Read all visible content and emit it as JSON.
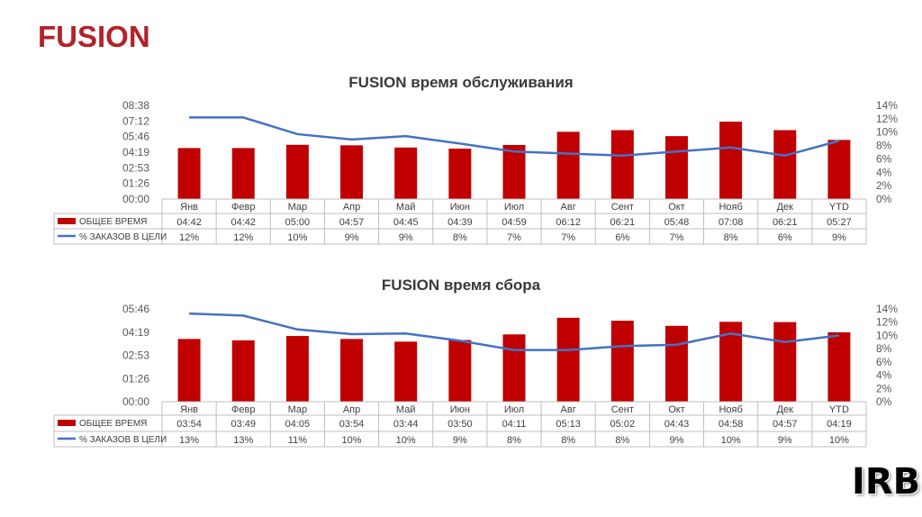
{
  "page": {
    "title": "FUSION",
    "logo": "IRB"
  },
  "colors": {
    "bar": "#c00000",
    "line": "#4472c4",
    "title": "#b3222a",
    "grid": "#bfbfbf"
  },
  "chart_data": [
    {
      "type": "bar+line",
      "title": "FUSION время обслуживания",
      "categories": [
        "Янв",
        "Февр",
        "Мар",
        "Апр",
        "Май",
        "Июн",
        "Июл",
        "Авг",
        "Сент",
        "Окт",
        "Нояб",
        "Дек",
        "YTD"
      ],
      "series": [
        {
          "name": "ОБЩЕЕ ВРЕМЯ",
          "kind": "bar",
          "axis": "left",
          "values": [
            "04:42",
            "04:42",
            "05:00",
            "04:57",
            "04:45",
            "04:39",
            "04:59",
            "06:12",
            "06:21",
            "05:48",
            "07:08",
            "06:21",
            "05:27"
          ]
        },
        {
          "name": "% ЗАКАЗОВ В ЦЕЛИ",
          "kind": "line",
          "axis": "right",
          "values": [
            12.2,
            12.2,
            9.7,
            8.9,
            9.4,
            8.3,
            7.1,
            6.8,
            6.5,
            7.1,
            7.7,
            6.5,
            8.7
          ],
          "labels": [
            "12%",
            "12%",
            "10%",
            "9%",
            "9%",
            "8%",
            "7%",
            "7%",
            "6%",
            "7%",
            "8%",
            "6%",
            "9%"
          ]
        }
      ],
      "y_left_ticks": [
        "00:00",
        "01:26",
        "02:53",
        "04:19",
        "05:46",
        "07:12",
        "08:38"
      ],
      "y_left_max_minutes": 518,
      "y_right_ticks": [
        "0%",
        "2%",
        "4%",
        "6%",
        "8%",
        "10%",
        "12%",
        "14%"
      ],
      "y_right_max": 14,
      "grid": false,
      "legend": "table-below"
    },
    {
      "type": "bar+line",
      "title": "FUSION время сбора",
      "categories": [
        "Янв",
        "Февр",
        "Мар",
        "Апр",
        "Май",
        "Июн",
        "Июл",
        "Авг",
        "Сент",
        "Окт",
        "Нояб",
        "Дек",
        "YTD"
      ],
      "series": [
        {
          "name": "ОБЩЕЕ ВРЕМЯ",
          "kind": "bar",
          "axis": "left",
          "values": [
            "03:54",
            "03:49",
            "04:05",
            "03:54",
            "03:44",
            "03:50",
            "04:11",
            "05:13",
            "05:02",
            "04:43",
            "04:58",
            "04:57",
            "04:19"
          ]
        },
        {
          "name": "% ЗАКАЗОВ В ЦЕЛИ",
          "kind": "line",
          "axis": "right",
          "values": [
            13.3,
            13.0,
            10.9,
            10.2,
            10.3,
            9.2,
            7.8,
            7.8,
            8.4,
            8.6,
            10.3,
            9.0,
            10.0
          ],
          "labels": [
            "13%",
            "13%",
            "11%",
            "10%",
            "10%",
            "9%",
            "8%",
            "8%",
            "8%",
            "9%",
            "10%",
            "9%",
            "10%"
          ]
        }
      ],
      "y_left_ticks": [
        "00:00",
        "01:26",
        "02:53",
        "04:19",
        "05:46"
      ],
      "y_left_max_minutes": 346,
      "y_right_ticks": [
        "0%",
        "2%",
        "4%",
        "6%",
        "8%",
        "10%",
        "12%",
        "14%"
      ],
      "y_right_max": 14,
      "grid": false,
      "legend": "table-below"
    }
  ]
}
